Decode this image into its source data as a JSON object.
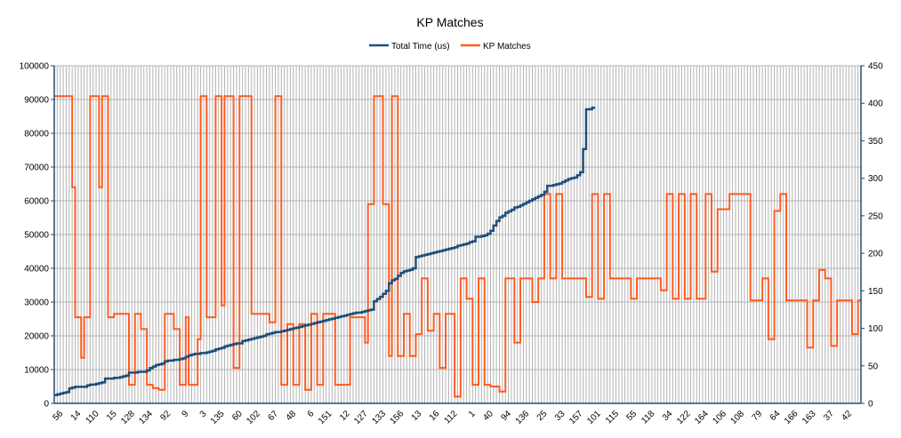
{
  "chart_data": {
    "type": "line",
    "title": "KP Matches",
    "legend_position": "top",
    "grid": true,
    "colors": {
      "total_time": "#1f4e79",
      "kp_matches": "#ff5a1f",
      "grid": "#b3b3b3",
      "axis": "#1f4e79"
    },
    "left_axis": {
      "ylim": [
        0,
        100000
      ],
      "ticks": [
        "0",
        "10000",
        "20000",
        "30000",
        "40000",
        "50000",
        "60000",
        "70000",
        "80000",
        "90000",
        "100000"
      ]
    },
    "right_axis": {
      "ylim": [
        0,
        450
      ],
      "ticks": [
        "0",
        "50",
        "100",
        "150",
        "200",
        "250",
        "300",
        "350",
        "400",
        "450"
      ]
    },
    "x_labels": [
      "56",
      "14",
      "110",
      "15",
      "128",
      "134",
      "92",
      "9",
      "3",
      "135",
      "60",
      "102",
      "67",
      "48",
      "6",
      "151",
      "12",
      "127",
      "133",
      "156",
      "13",
      "16",
      "112",
      "1",
      "40",
      "94",
      "136",
      "25",
      "33",
      "157",
      "101",
      "115",
      "55",
      "118",
      "34",
      "122",
      "164",
      "106",
      "108",
      "79",
      "64",
      "166",
      "163",
      "37",
      "42"
    ],
    "step_each_point": true,
    "series": [
      {
        "name": "Total Time (us)",
        "axis": "right",
        "values": [
          11,
          12,
          13,
          14,
          15,
          20,
          21,
          22,
          22,
          22,
          22,
          24,
          25,
          25,
          26,
          27,
          28,
          33,
          33,
          33,
          34,
          34,
          35,
          36,
          37,
          41,
          41,
          41,
          42,
          42,
          42,
          44,
          47,
          49,
          51,
          52,
          53,
          56,
          57,
          57,
          58,
          58,
          59,
          60,
          62,
          64,
          65,
          66,
          66,
          67,
          67,
          68,
          69,
          70,
          72,
          73,
          74,
          76,
          77,
          78,
          79,
          80,
          80,
          83,
          84,
          85,
          86,
          87,
          88,
          89,
          90,
          92,
          93,
          94,
          95,
          95,
          96,
          97,
          98,
          99,
          100,
          101,
          102,
          103,
          104,
          105,
          106,
          107,
          108,
          109,
          110,
          111,
          112,
          113,
          114,
          115,
          116,
          117,
          118,
          119,
          120,
          121,
          121,
          122,
          123,
          124,
          125,
          136,
          139,
          142,
          146,
          150,
          160,
          164,
          166,
          170,
          174,
          176,
          177,
          178,
          180,
          195,
          196,
          197,
          198,
          199,
          200,
          201,
          202,
          203,
          204,
          205,
          206,
          207,
          208,
          210,
          211,
          212,
          213,
          215,
          216,
          222,
          222,
          223,
          224,
          226,
          230,
          237,
          243,
          248,
          250,
          254,
          256,
          258,
          261,
          262,
          264,
          266,
          268,
          270,
          272,
          274,
          276,
          278,
          282,
          290,
          290,
          291,
          292,
          293,
          295,
          297,
          299,
          300,
          301,
          304,
          308,
          339,
          392,
          392,
          394
        ]
      },
      {
        "name": "KP Matches",
        "axis": "left",
        "values": [
          91000,
          91000,
          91000,
          91000,
          91000,
          91000,
          64000,
          25500,
          25500,
          13500,
          25500,
          25500,
          91000,
          91000,
          91000,
          64000,
          91000,
          91000,
          25500,
          25500,
          26500,
          26500,
          26500,
          26500,
          26500,
          5500,
          5500,
          26500,
          26500,
          22000,
          22000,
          5500,
          5500,
          4500,
          4500,
          4000,
          4000,
          26500,
          26500,
          26500,
          22000,
          22000,
          5500,
          5500,
          25500,
          5500,
          5500,
          5500,
          19000,
          91000,
          91000,
          25500,
          25500,
          25500,
          91000,
          91000,
          29000,
          91000,
          91000,
          91000,
          10500,
          10500,
          91000,
          91000,
          91000,
          91000,
          26500,
          26500,
          26500,
          26500,
          26500,
          26500,
          24000,
          24000,
          91000,
          91000,
          5500,
          5500,
          23500,
          23500,
          5500,
          5500,
          23500,
          23500,
          4000,
          4000,
          26500,
          26500,
          5500,
          5500,
          26500,
          26500,
          26500,
          26500,
          5500,
          5500,
          5500,
          5500,
          5500,
          25500,
          25500,
          25500,
          25500,
          25500,
          18000,
          59000,
          59000,
          91000,
          91000,
          91000,
          59000,
          59000,
          14000,
          91000,
          91000,
          14000,
          14000,
          26500,
          26500,
          14000,
          14000,
          20500,
          20500,
          37000,
          37000,
          21500,
          21500,
          26500,
          26500,
          10500,
          10500,
          26500,
          26500,
          26500,
          2000,
          2000,
          37000,
          37000,
          31000,
          31000,
          5500,
          5500,
          37000,
          37000,
          5500,
          5500,
          5000,
          5000,
          5000,
          3500,
          3500,
          37000,
          37000,
          37000,
          18000,
          18000,
          37000,
          37000,
          37000,
          37000,
          30000,
          30000,
          37000,
          37000,
          62000,
          62000,
          37000,
          37000,
          62000,
          62000,
          37000,
          37000,
          37000,
          37000,
          37000,
          37000,
          37000,
          37000,
          31500,
          31500,
          62000,
          62000,
          31000,
          31000,
          62000,
          62000,
          37000,
          37000,
          37000,
          37000,
          37000,
          37000,
          37000,
          31000,
          31000,
          37000,
          37000,
          37000,
          37000,
          37000,
          37000,
          37000,
          37000,
          33500,
          33500,
          62000,
          62000,
          31000,
          31000,
          62000,
          62000,
          31000,
          31000,
          62000,
          62000,
          31000,
          31000,
          31000,
          62000,
          62000,
          39000,
          39000,
          57500,
          57500,
          57500,
          57500,
          62000,
          62000,
          62000,
          62000,
          62000,
          62000,
          62000,
          30500,
          30500,
          30500,
          30500,
          37000,
          37000,
          19000,
          19000,
          57000,
          57000,
          62000,
          62000,
          30500,
          30500,
          30500,
          30500,
          30500,
          30500,
          30500,
          16500,
          16500,
          30500,
          30500,
          39500,
          39500,
          37000,
          37000,
          17000,
          17000,
          30500,
          30500,
          30500,
          30500,
          30500,
          20500,
          20500,
          30500
        ]
      }
    ]
  }
}
